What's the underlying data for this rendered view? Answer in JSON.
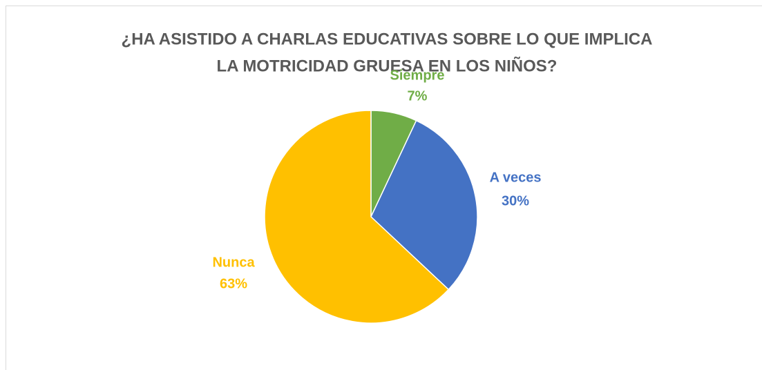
{
  "chart_data": {
    "type": "pie",
    "title": [
      "¿HA ASISTIDO A CHARLAS EDUCATIVAS SOBRE LO QUE IMPLICA",
      "LA MOTRICIDAD GRUESA EN LOS NIÑOS?"
    ],
    "categories": [
      "Siempre",
      "A veces",
      "Nunca"
    ],
    "values": [
      7,
      30,
      63
    ],
    "value_labels": [
      "7%",
      "30%",
      "63%"
    ],
    "colors": [
      "#70ad47",
      "#4472c4",
      "#ffc000"
    ]
  }
}
